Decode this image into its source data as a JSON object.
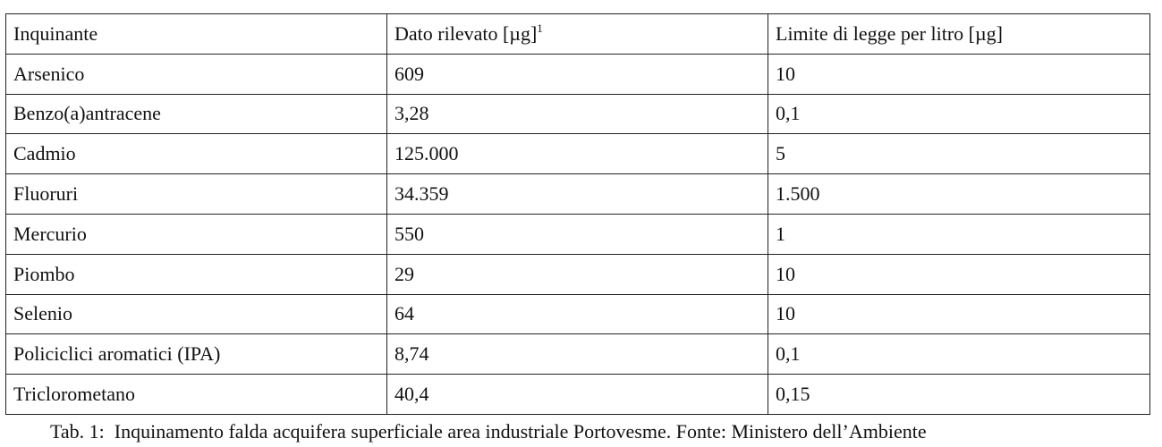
{
  "table": {
    "header": [
      "Inquinante",
      "Dato rilevato [µg]",
      "Limite di legge per litro [µg]"
    ],
    "header_footnote": "1",
    "rows": [
      [
        "Arsenico",
        "609",
        "10"
      ],
      [
        "Benzo(a)antracene",
        "3,28",
        "0,1"
      ],
      [
        "Cadmio",
        "125.000",
        "5"
      ],
      [
        "Fluoruri",
        "34.359",
        "1.500"
      ],
      [
        "Mercurio",
        "550",
        "1"
      ],
      [
        "Piombo",
        "29",
        "10"
      ],
      [
        "Selenio",
        "64",
        "10"
      ],
      [
        "Policiclici aromatici (IPA)",
        "8,74",
        "0,1"
      ],
      [
        "Triclorometano",
        "40,4",
        "0,15"
      ]
    ]
  },
  "caption": "Tab. 1:  Inquinamento falda acquifera superficiale area industriale Portovesme. Fonte: Ministero dell’Ambiente"
}
